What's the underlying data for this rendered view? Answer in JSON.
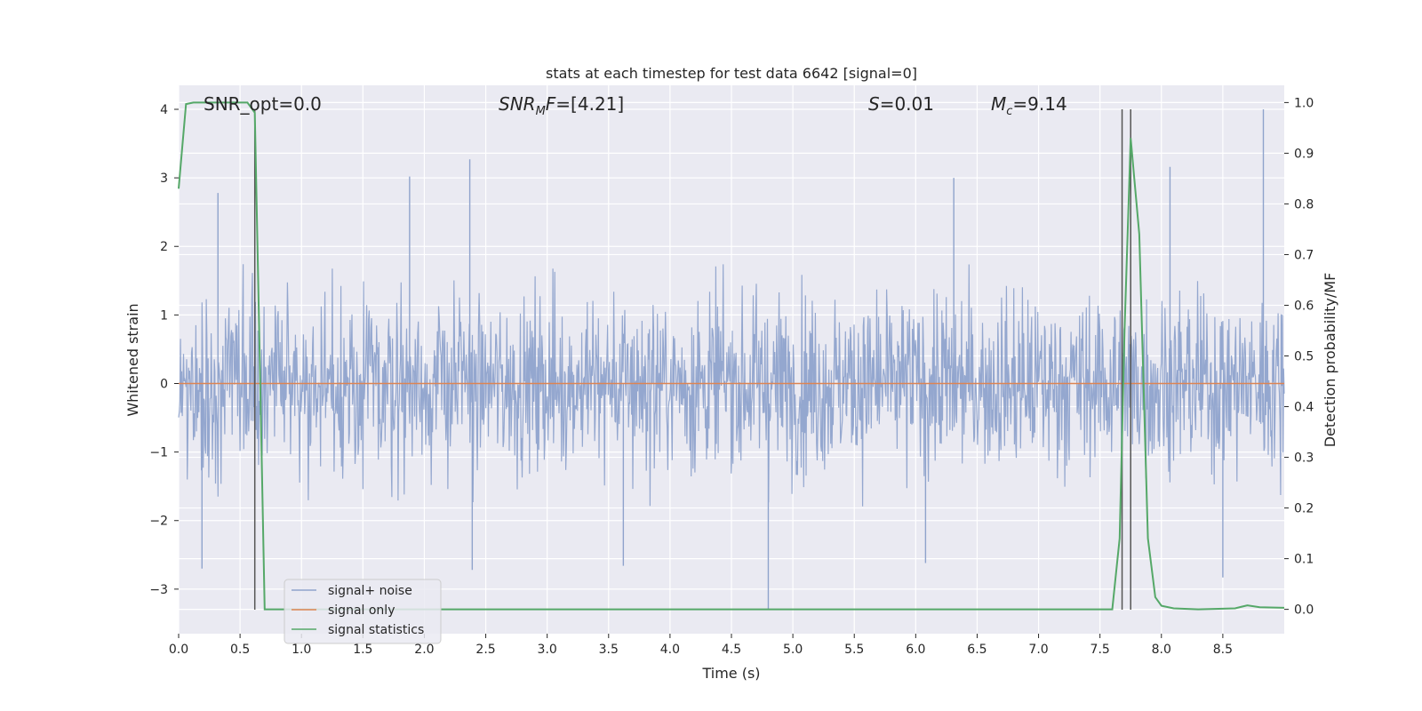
{
  "chart_data": {
    "type": "line",
    "title": "stats at each timestep for test data 6642 [signal=0]",
    "xlabel": "Time (s)",
    "ylabel_left": "Whitened strain",
    "ylabel_right": "Detection probability/MF",
    "xlim": [
      0.0,
      9.0
    ],
    "ylim_left": [
      -3.65,
      4.35
    ],
    "ylim_right": [
      -0.048,
      1.034
    ],
    "x_ticks": [
      "0.0",
      "0.5",
      "1.0",
      "1.5",
      "2.0",
      "2.5",
      "3.0",
      "3.5",
      "4.0",
      "4.5",
      "5.0",
      "5.5",
      "6.0",
      "6.5",
      "7.0",
      "7.5",
      "8.0",
      "8.5"
    ],
    "x_tick_values": [
      0.0,
      0.5,
      1.0,
      1.5,
      2.0,
      2.5,
      3.0,
      3.5,
      4.0,
      4.5,
      5.0,
      5.5,
      6.0,
      6.5,
      7.0,
      7.5,
      8.0,
      8.5
    ],
    "y_left_ticks": [
      "−3",
      "−2",
      "−1",
      "0",
      "1",
      "2",
      "3",
      "4"
    ],
    "y_left_tick_values": [
      -3,
      -2,
      -1,
      0,
      1,
      2,
      3,
      4
    ],
    "y_right_ticks": [
      "0.0",
      "0.1",
      "0.2",
      "0.3",
      "0.4",
      "0.5",
      "0.6",
      "0.7",
      "0.8",
      "0.9",
      "1.0"
    ],
    "y_right_tick_values": [
      0.0,
      0.1,
      0.2,
      0.3,
      0.4,
      0.5,
      0.6,
      0.7,
      0.8,
      0.9,
      1.0
    ],
    "grid": true,
    "legend_position": "lower-left",
    "annotations": [
      {
        "text": "SNR_opt=0.0",
        "x": 0.2,
        "y": 4.1
      },
      {
        "text": "SNR_MF=[4.21]",
        "x": 2.6,
        "y": 4.1
      },
      {
        "text": "S=0.01",
        "x": 5.6,
        "y": 4.1
      },
      {
        "text": "M_c=9.14",
        "x": 6.6,
        "y": 4.1
      }
    ],
    "vertical_lines": [
      0.62,
      7.68,
      7.75
    ],
    "vertical_line_range": [
      -3.3,
      4.0
    ],
    "series": [
      {
        "name": "signal+ noise",
        "axis": "left",
        "color": "#8fa3cc",
        "description": "whitened noise strain sampled densely over the full time range",
        "envelope_typical": [
          -1.8,
          2.0
        ],
        "notable_peaks": [
          {
            "x": 0.32,
            "y": 2.78
          },
          {
            "x": 1.88,
            "y": 3.02
          },
          {
            "x": 2.37,
            "y": 3.27
          },
          {
            "x": 6.31,
            "y": 3.0
          },
          {
            "x": 8.07,
            "y": 3.16
          },
          {
            "x": 8.83,
            "y": 4.0
          },
          {
            "x": 0.19,
            "y": -2.7
          },
          {
            "x": 2.39,
            "y": -2.72
          },
          {
            "x": 3.62,
            "y": -2.66
          },
          {
            "x": 4.8,
            "y": -3.3
          },
          {
            "x": 6.08,
            "y": -2.62
          },
          {
            "x": 8.5,
            "y": -2.83
          }
        ]
      },
      {
        "name": "signal only",
        "axis": "left",
        "color": "#dd8452",
        "x": [
          0.0,
          9.0
        ],
        "y": [
          0.0,
          0.0
        ]
      },
      {
        "name": "signal statistics",
        "axis": "right",
        "color": "#55a868",
        "x": [
          0.0,
          0.06,
          0.12,
          0.2,
          0.3,
          0.4,
          0.5,
          0.56,
          0.62,
          0.66,
          0.7,
          1.0,
          2.0,
          3.0,
          4.0,
          5.0,
          6.0,
          7.0,
          7.5,
          7.6,
          7.66,
          7.7,
          7.75,
          7.82,
          7.89,
          7.95,
          8.0,
          8.1,
          8.3,
          8.6,
          8.7,
          8.8,
          9.0
        ],
        "y": [
          0.83,
          0.997,
          1.0,
          1.0,
          1.0,
          1.0,
          1.0,
          1.0,
          0.98,
          0.5,
          0.0,
          0.0,
          0.0,
          0.0,
          0.0,
          0.0,
          0.0,
          0.0,
          0.0,
          0.0,
          0.14,
          0.55,
          0.93,
          0.74,
          0.14,
          0.024,
          0.007,
          0.002,
          0.0,
          0.002,
          0.008,
          0.004,
          0.003
        ]
      }
    ]
  }
}
